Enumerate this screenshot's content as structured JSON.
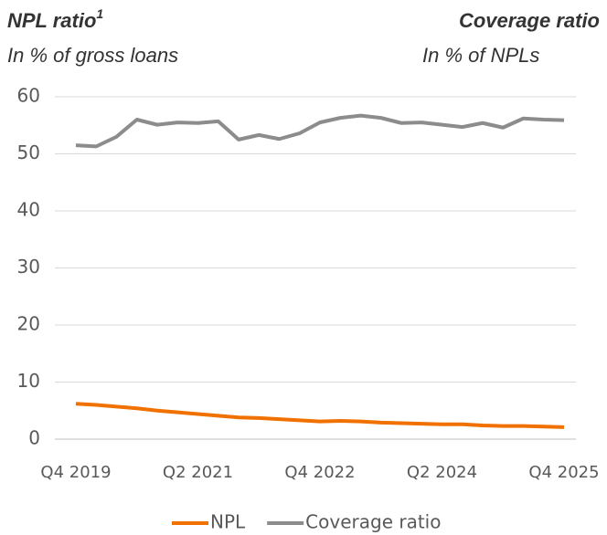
{
  "chart_data": {
    "type": "line",
    "title": "NPL ratio",
    "title_superscript": "1",
    "subtitle": "In % of gross loans",
    "title_right": "Coverage ratio",
    "subtitle_right": "In % of NPLs",
    "categories": [
      "Q4 2019",
      null,
      null,
      null,
      null,
      null,
      "Q2 2021",
      null,
      null,
      null,
      null,
      null,
      "Q4 2022",
      null,
      null,
      null,
      null,
      null,
      "Q2 2024",
      null,
      null,
      null,
      null,
      null,
      "Q4 2025"
    ],
    "series": [
      {
        "name": "NPL",
        "color": "#f07000",
        "values": [
          6.2,
          6.0,
          5.7,
          5.4,
          5.0,
          4.7,
          4.4,
          4.1,
          3.8,
          3.7,
          3.5,
          3.3,
          3.1,
          3.2,
          3.1,
          2.9,
          2.8,
          2.7,
          2.6,
          2.6,
          2.4,
          2.3,
          2.3,
          2.2,
          2.1
        ]
      },
      {
        "name": "Coverage ratio",
        "color": "#8c8c8c",
        "values": [
          51.5,
          51.3,
          53.0,
          56.0,
          55.1,
          55.5,
          55.4,
          55.7,
          52.5,
          53.3,
          52.6,
          53.6,
          55.5,
          56.3,
          56.7,
          56.3,
          55.4,
          55.5,
          55.1,
          54.7,
          55.4,
          54.6,
          56.2,
          56.0,
          55.9
        ]
      }
    ],
    "ylim": [
      0,
      60
    ],
    "yticks": [
      0,
      10,
      20,
      30,
      40,
      50,
      60
    ],
    "grid": true,
    "legend": "bottom"
  }
}
